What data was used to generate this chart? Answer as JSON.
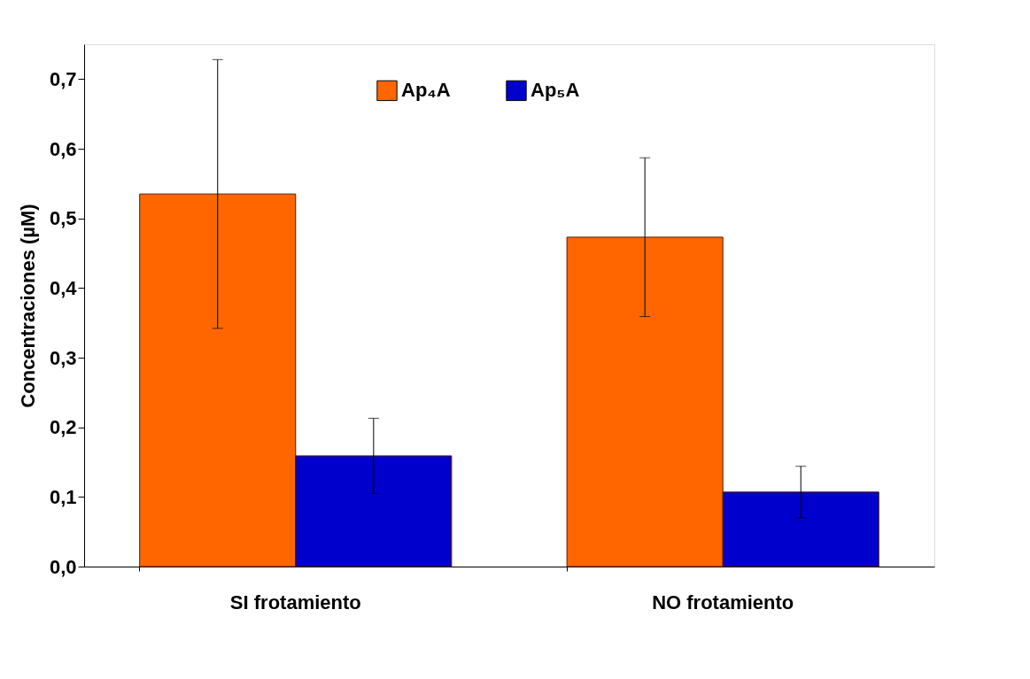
{
  "chart_data": {
    "type": "bar",
    "ylabel": "Concentraciones (µM)",
    "categories": [
      "SI frotamiento",
      "NO frotamiento"
    ],
    "series": [
      {
        "name": "Ap₄A",
        "color": "#ff6600",
        "values": [
          0.535,
          0.473
        ],
        "errors": [
          0.193,
          0.114
        ]
      },
      {
        "name": "Ap₅A",
        "color": "#0000cc",
        "values": [
          0.159,
          0.107
        ],
        "errors": [
          0.054,
          0.037
        ]
      }
    ],
    "ylim": [
      0,
      0.75
    ],
    "yticks": [
      {
        "value": 0,
        "label": "0,0"
      },
      {
        "value": 0.1,
        "label": "0,1"
      },
      {
        "value": 0.2,
        "label": "0,2"
      },
      {
        "value": 0.3,
        "label": "0,3"
      },
      {
        "value": 0.4,
        "label": "0,4"
      },
      {
        "value": 0.5,
        "label": "0,5"
      },
      {
        "value": 0.6,
        "label": "0,6"
      },
      {
        "value": 0.7,
        "label": "0,7"
      }
    ],
    "grid": false,
    "legend": "top"
  }
}
